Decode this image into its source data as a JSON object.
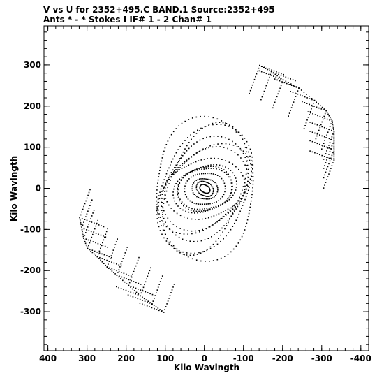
{
  "header": {
    "line1": "V vs U for 2352+495.C BAND.1   Source:2352+495",
    "line2": "Ants * - *     Stokes I  IF# 1 - 2  Chan# 1"
  },
  "chart_data": {
    "type": "scatter",
    "xlabel": "Kilo Wavlngth",
    "ylabel": "Kilo Wavlngth",
    "xlim": [
      410,
      -420
    ],
    "ylim": [
      -395,
      395
    ],
    "x_ticks": [
      400,
      300,
      200,
      100,
      0,
      -100,
      -200,
      -300,
      -400
    ],
    "y_ticks": [
      300,
      200,
      100,
      0,
      -100,
      -200,
      -300
    ],
    "grid": false,
    "marker_color": "#000000",
    "core": {
      "description_free_params": true,
      "center": [
        0,
        0
      ],
      "num_tracks": 14,
      "max_radius": 160
    },
    "arm_ne": {
      "spine": [
        [
          -140,
          300
        ],
        [
          -170,
          285
        ],
        [
          -200,
          265
        ],
        [
          -240,
          245
        ],
        [
          -280,
          215
        ],
        [
          -310,
          190
        ],
        [
          -325,
          165
        ],
        [
          -330,
          140
        ],
        [
          -330,
          118
        ],
        [
          -330,
          95
        ],
        [
          -330,
          70
        ]
      ],
      "branch_direction": [
        0.55,
        -0.85
      ],
      "branch_length": 80
    },
    "arm_sw": {
      "spine": [
        [
          320,
          -70
        ],
        [
          315,
          -95
        ],
        [
          310,
          -120
        ],
        [
          300,
          -145
        ],
        [
          275,
          -165
        ],
        [
          250,
          -190
        ],
        [
          225,
          -210
        ],
        [
          195,
          -235
        ],
        [
          165,
          -260
        ],
        [
          135,
          -280
        ],
        [
          105,
          -300
        ]
      ],
      "branch_direction": [
        -0.55,
        0.85
      ],
      "branch_length": 80
    }
  }
}
